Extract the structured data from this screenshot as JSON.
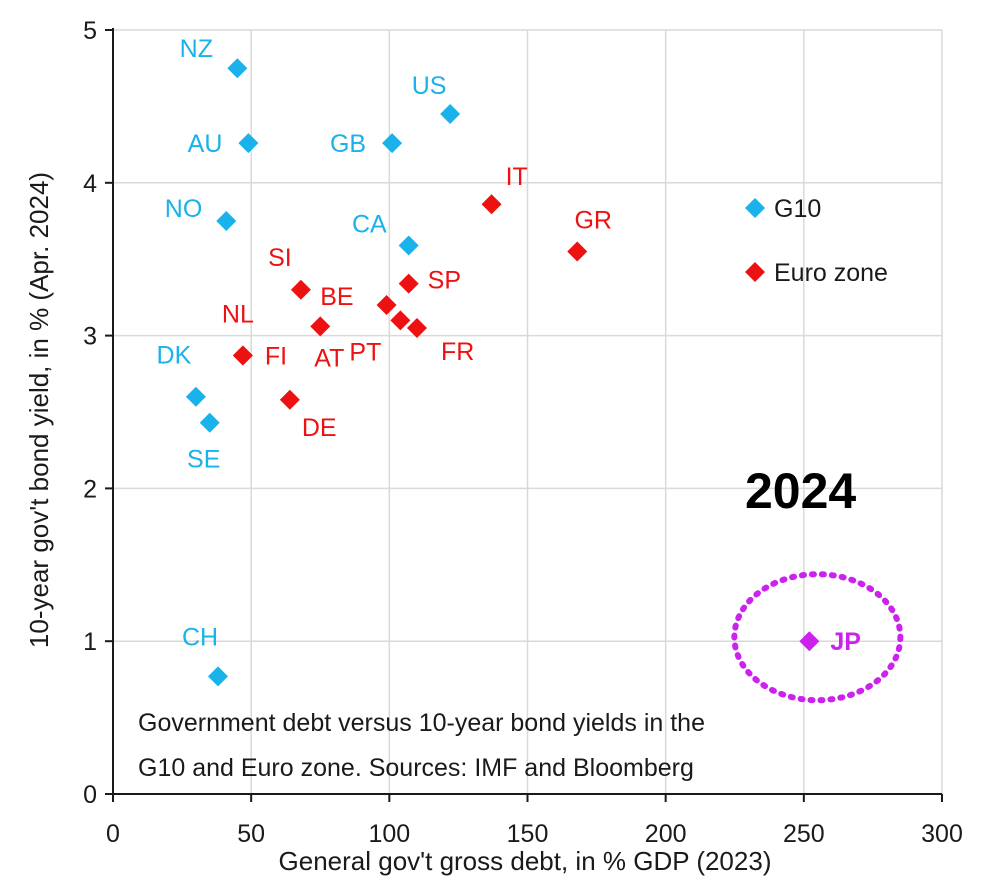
{
  "chart_data": {
    "type": "scatter",
    "title": "",
    "xlabel": "General gov't gross debt, in % GDP (2023)",
    "ylabel": "10-year gov't bond yield, in % (Apr. 2024)",
    "xlim": [
      0,
      300
    ],
    "ylim": [
      0,
      5
    ],
    "xticks": [
      "0",
      "50",
      "100",
      "150",
      "200",
      "250",
      "300"
    ],
    "yticks": [
      "0",
      "1",
      "2",
      "3",
      "4",
      "5"
    ],
    "grid": true,
    "legend_position": "right",
    "series": [
      {
        "name": "G10",
        "color": "#1ab2ea",
        "marker": "diamond",
        "points": [
          {
            "label": "NZ",
            "x": 45,
            "y": 4.75
          },
          {
            "label": "US",
            "x": 122,
            "y": 4.45
          },
          {
            "label": "AU",
            "x": 49,
            "y": 4.26
          },
          {
            "label": "GB",
            "x": 101,
            "y": 4.26
          },
          {
            "label": "NO",
            "x": 41,
            "y": 3.75
          },
          {
            "label": "CA",
            "x": 107,
            "y": 3.59
          },
          {
            "label": "DK",
            "x": 30,
            "y": 2.6
          },
          {
            "label": "SE",
            "x": 35,
            "y": 2.43
          },
          {
            "label": "CH",
            "x": 38,
            "y": 0.77
          }
        ]
      },
      {
        "name": "Euro zone",
        "color": "#ee1111",
        "marker": "diamond",
        "points": [
          {
            "label": "IT",
            "x": 137,
            "y": 3.86
          },
          {
            "label": "GR",
            "x": 168,
            "y": 3.55
          },
          {
            "label": "SP",
            "x": 107,
            "y": 3.34
          },
          {
            "label": "SI",
            "x": 68,
            "y": 3.3
          },
          {
            "label": "BE",
            "x": 99,
            "y": 3.2
          },
          {
            "label": "PT",
            "x": 104,
            "y": 3.1
          },
          {
            "label": "FR",
            "x": 110,
            "y": 3.05
          },
          {
            "label": "AT",
            "x": 75,
            "y": 3.06
          },
          {
            "label": "NL",
            "x": 47,
            "y": 2.87
          },
          {
            "label": "FI",
            "x": 47,
            "y": 2.87
          },
          {
            "label": "DE",
            "x": 64,
            "y": 2.58
          }
        ]
      },
      {
        "name": "",
        "color": "#cc22ee",
        "marker": "diamond",
        "highlight": "dotted ellipse",
        "points": [
          {
            "label": "JP",
            "x": 252,
            "y": 1.0
          }
        ]
      }
    ],
    "annotations": [
      "Government debt versus 10-year bond yields in the",
      "G10 and Euro zone. Sources: IMF and Bloomberg",
      "2024"
    ]
  }
}
